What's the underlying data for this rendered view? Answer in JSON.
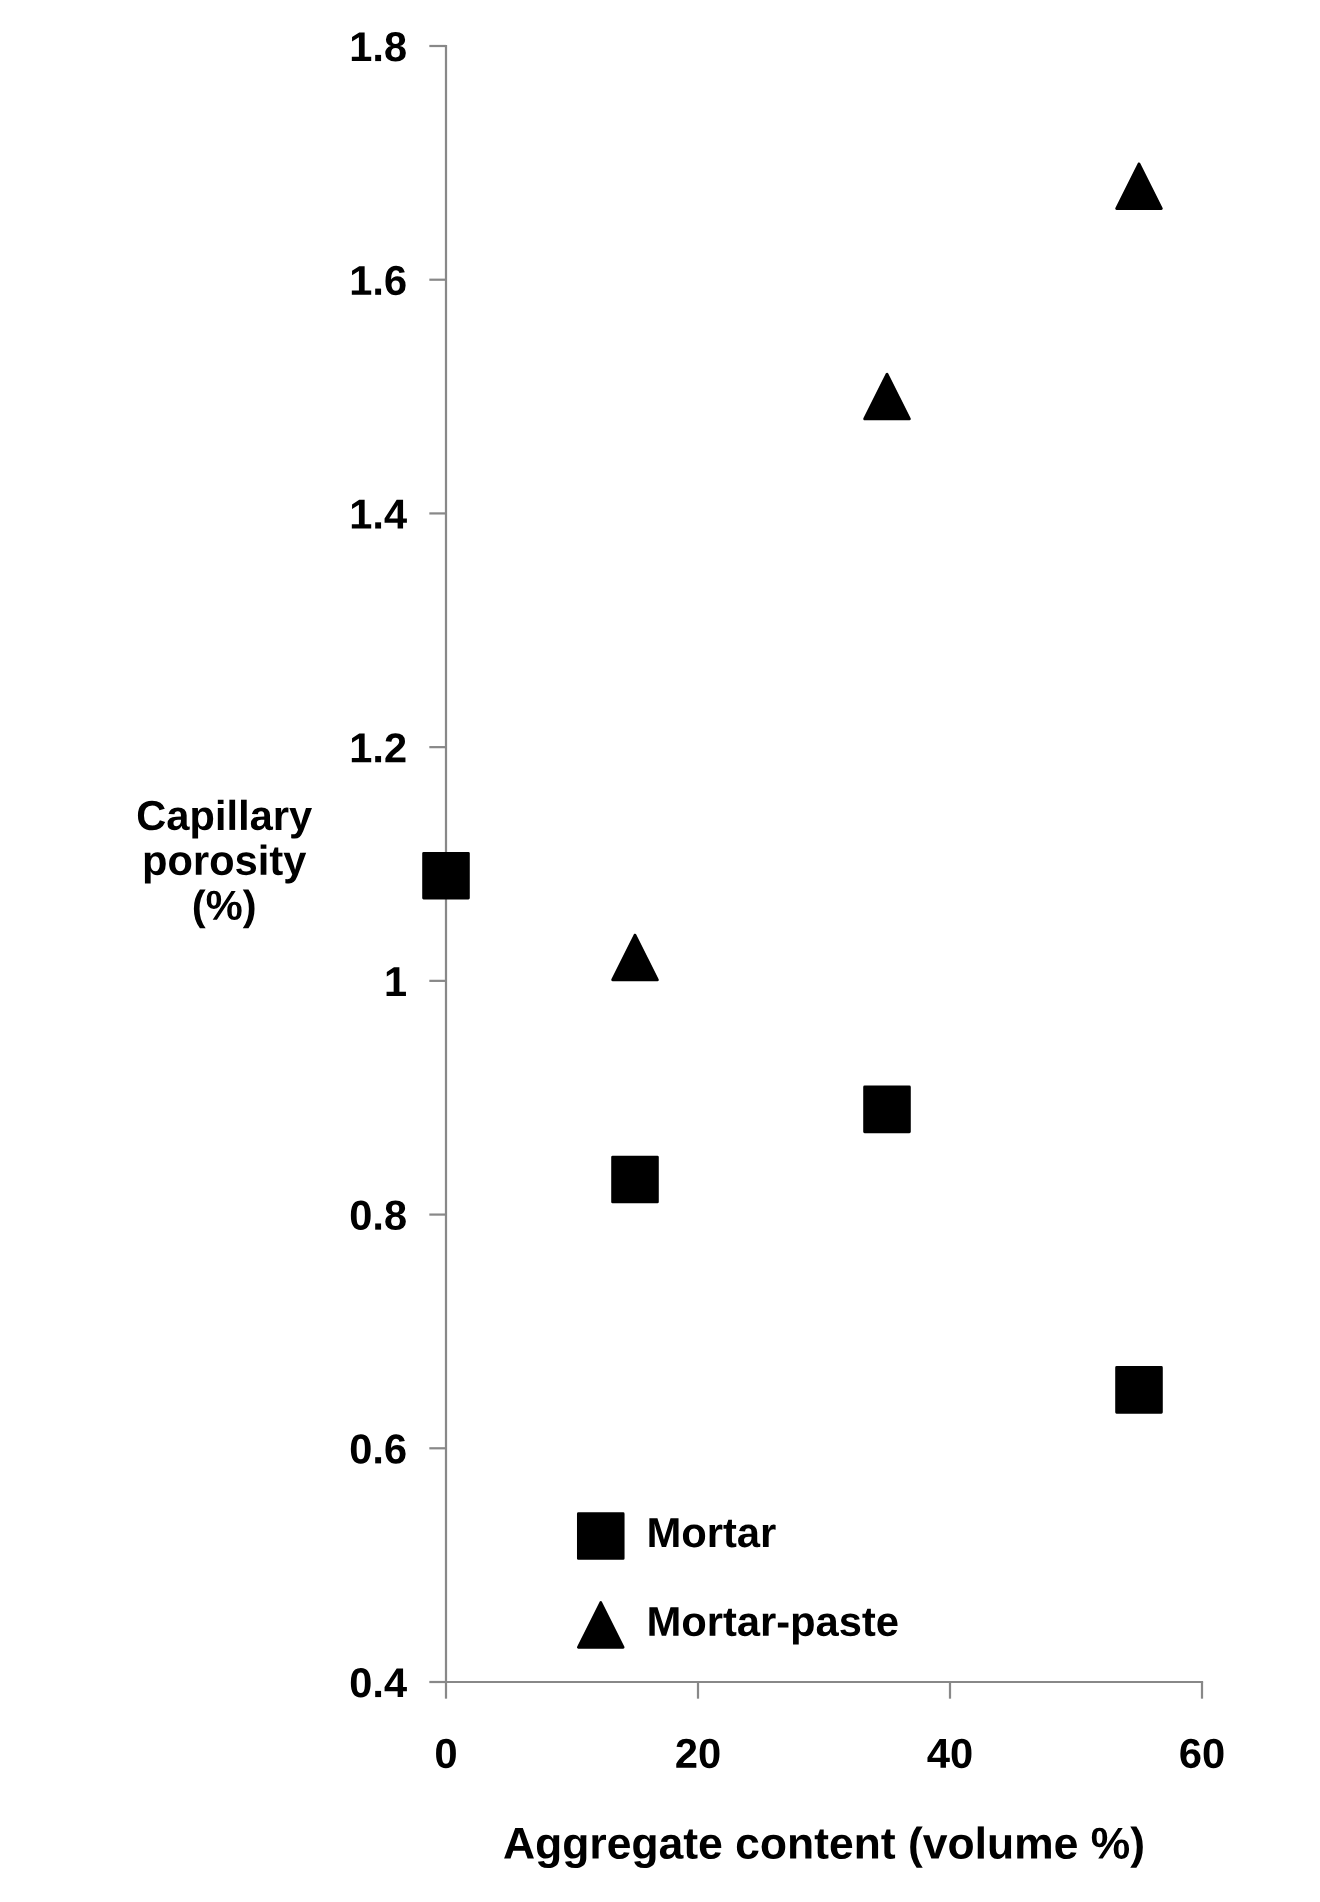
{
  "chart_data": {
    "type": "scatter",
    "xlabel": "Aggregate content (volume %)",
    "ylabel": "Capillary\nporosity\n(%)",
    "xlim": [
      0,
      60
    ],
    "xticks": [
      0,
      20,
      40,
      60
    ],
    "ylim": [
      0.4,
      1.8
    ],
    "yticks": [
      0.4,
      0.6,
      0.8,
      1,
      1.2,
      1.4,
      1.6,
      1.8
    ],
    "grid": false,
    "legend": "bottom left",
    "series": [
      {
        "name": "Mortar",
        "color": "#000000",
        "marker": "square",
        "x": [
          0,
          15,
          35,
          55
        ],
        "values": [
          1.09,
          0.83,
          0.89,
          0.65
        ]
      },
      {
        "name": "Mortar-paste",
        "color": "#000000",
        "marker": "triangle",
        "x": [
          15,
          35,
          55
        ],
        "values": [
          1.02,
          1.5,
          1.68
        ]
      }
    ]
  }
}
